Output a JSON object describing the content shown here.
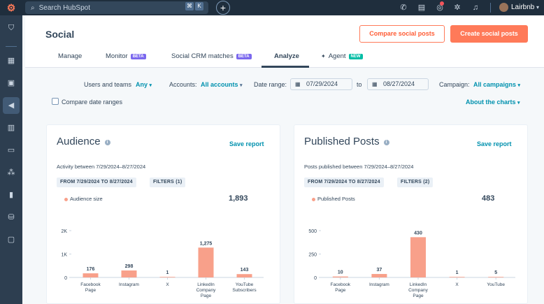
{
  "topbar": {
    "search_placeholder": "Search HubSpot",
    "shortcut_keys": [
      "⌘",
      "K"
    ],
    "account_name": "Lairbnb",
    "icons": [
      "phone-icon",
      "marketplace-icon",
      "notifications-icon",
      "settings-icon",
      "bell-icon"
    ]
  },
  "sidebar": {
    "icons": [
      "bookmark-icon",
      "dashboard-icon",
      "contacts-icon",
      "marketing-icon",
      "content-icon",
      "commerce-icon",
      "automation-icon",
      "reporting-icon",
      "data-icon",
      "library-icon"
    ]
  },
  "header": {
    "title": "Social",
    "compare_button": "Compare social posts",
    "create_button": "Create social posts",
    "tabs": [
      {
        "label": "Manage",
        "badge": ""
      },
      {
        "label": "Monitor",
        "badge": "BETA"
      },
      {
        "label": "Social CRM matches",
        "badge": "BETA"
      },
      {
        "label": "Analyze",
        "badge": ""
      },
      {
        "label": "Agent",
        "badge": "NEW"
      }
    ]
  },
  "filters": {
    "users_label": "Users and teams",
    "users_value": "Any",
    "accounts_label": "Accounts:",
    "accounts_value": "All accounts",
    "date_label": "Date range:",
    "date_from": "07/29/2024",
    "date_to_label": "to",
    "date_to": "08/27/2024",
    "campaign_label": "Campaign:",
    "campaign_value": "All campaigns",
    "compare_label": "Compare date ranges",
    "about_link": "About the charts"
  },
  "audience": {
    "title": "Audience",
    "save": "Save report",
    "subtitle": "Activity between 7/29/2024–8/27/2024",
    "chip_range": "FROM 7/29/2024 TO 8/27/2024",
    "chip_filters": "FILTERS (1)",
    "legend": "Audience size",
    "total": "1,893"
  },
  "published": {
    "title": "Published Posts",
    "save": "Save report",
    "subtitle": "Posts published between 7/29/2024–8/27/2024",
    "chip_range": "FROM 7/29/2024 TO 8/27/2024",
    "chip_filters": "FILTERS (2)",
    "legend": "Published Posts",
    "total": "483"
  },
  "colors": {
    "accent": "#ff7a59",
    "bar": "#f8a08a",
    "link": "#0091ae",
    "nav": "#2d3e50"
  },
  "chart_data": [
    {
      "type": "bar",
      "categories": [
        [
          "Facebook",
          "Page"
        ],
        [
          "Instagram"
        ],
        [
          "X"
        ],
        [
          "LinkedIn",
          "Company",
          "Page"
        ],
        [
          "YouTube",
          "Subscribers"
        ]
      ],
      "values": [
        176,
        298,
        1,
        1275,
        143
      ],
      "yticks": [
        0,
        1000,
        2000
      ],
      "ytick_labels": [
        "0",
        "1K",
        "2K"
      ],
      "ylim": [
        0,
        2000
      ]
    },
    {
      "type": "bar",
      "categories": [
        [
          "Facebook",
          "Page"
        ],
        [
          "Instagram"
        ],
        [
          "LinkedIn",
          "Company",
          "Page"
        ],
        [
          "X"
        ],
        [
          "YouTube"
        ]
      ],
      "values": [
        10,
        37,
        430,
        1,
        5
      ],
      "yticks": [
        0,
        250,
        500
      ],
      "ytick_labels": [
        "0",
        "250",
        "500"
      ],
      "ylim": [
        0,
        500
      ]
    }
  ]
}
